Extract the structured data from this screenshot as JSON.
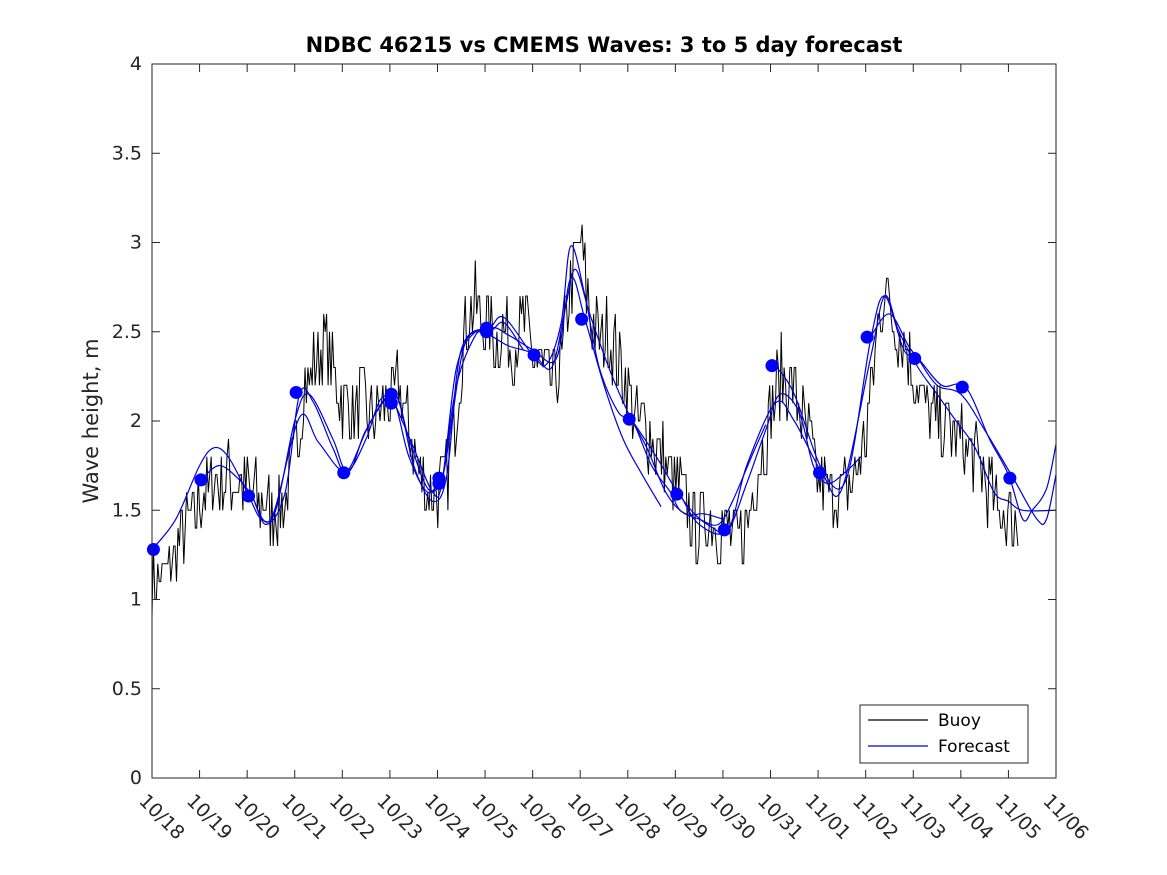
{
  "chart_data": {
    "type": "line",
    "title": "NDBC 46215 vs CMEMS Waves: 3 to 5 day forecast",
    "xlabel": "",
    "ylabel": "Wave height, m",
    "x_tick_labels": [
      "10/18",
      "10/19",
      "10/20",
      "10/21",
      "10/22",
      "10/23",
      "10/24",
      "10/25",
      "10/26",
      "10/27",
      "10/28",
      "10/29",
      "10/30",
      "10/31",
      "11/01",
      "11/02",
      "11/03",
      "11/04",
      "11/05",
      "11/06"
    ],
    "x_unit": "days since 10/18",
    "xlim": [
      0,
      19
    ],
    "ylim": [
      0,
      4
    ],
    "y_ticks": [
      0,
      0.5,
      1,
      1.5,
      2,
      2.5,
      3,
      3.5,
      4
    ],
    "y_tick_labels": [
      "0",
      "0.5",
      "1",
      "1.5",
      "2",
      "2.5",
      "3",
      "3.5",
      "4"
    ],
    "grid": false,
    "legend_position": "bottom-right",
    "colors": {
      "buoy": "#000000",
      "forecast": "#0000dd",
      "markers": "#0000ff",
      "axes": "#262626"
    },
    "buoy": {
      "name": "Buoy",
      "anchors": [
        [
          0.0,
          1.1
        ],
        [
          0.3,
          1.15
        ],
        [
          0.6,
          1.3
        ],
        [
          1.0,
          1.55
        ],
        [
          1.3,
          1.65
        ],
        [
          1.6,
          1.7
        ],
        [
          2.0,
          1.6
        ],
        [
          2.3,
          1.55
        ],
        [
          2.5,
          1.5
        ],
        [
          2.8,
          1.55
        ],
        [
          3.0,
          1.8
        ],
        [
          3.2,
          2.2
        ],
        [
          3.4,
          2.3
        ],
        [
          3.6,
          2.45
        ],
        [
          3.8,
          2.3
        ],
        [
          4.0,
          2.1
        ],
        [
          4.2,
          2.05
        ],
        [
          4.4,
          2.1
        ],
        [
          4.6,
          2.0
        ],
        [
          4.8,
          2.05
        ],
        [
          5.0,
          2.1
        ],
        [
          5.2,
          2.2
        ],
        [
          5.4,
          1.95
        ],
        [
          5.6,
          1.75
        ],
        [
          5.8,
          1.6
        ],
        [
          6.0,
          1.6
        ],
        [
          6.2,
          1.7
        ],
        [
          6.4,
          2.1
        ],
        [
          6.6,
          2.55
        ],
        [
          6.8,
          2.65
        ],
        [
          7.0,
          2.55
        ],
        [
          7.2,
          2.45
        ],
        [
          7.4,
          2.5
        ],
        [
          7.6,
          2.4
        ],
        [
          7.8,
          2.55
        ],
        [
          8.0,
          2.4
        ],
        [
          8.2,
          2.3
        ],
        [
          8.4,
          2.2
        ],
        [
          8.6,
          2.3
        ],
        [
          8.8,
          2.75
        ],
        [
          9.0,
          3.0
        ],
        [
          9.2,
          2.6
        ],
        [
          9.4,
          2.45
        ],
        [
          9.6,
          2.5
        ],
        [
          9.8,
          2.35
        ],
        [
          10.0,
          2.2
        ],
        [
          10.2,
          2.0
        ],
        [
          10.4,
          1.95
        ],
        [
          10.6,
          1.85
        ],
        [
          10.8,
          1.75
        ],
        [
          11.0,
          1.65
        ],
        [
          11.2,
          1.55
        ],
        [
          11.4,
          1.4
        ],
        [
          11.6,
          1.45
        ],
        [
          11.8,
          1.45
        ],
        [
          12.0,
          1.4
        ],
        [
          12.2,
          1.35
        ],
        [
          12.4,
          1.35
        ],
        [
          12.6,
          1.55
        ],
        [
          12.8,
          1.8
        ],
        [
          13.0,
          2.05
        ],
        [
          13.2,
          2.25
        ],
        [
          13.4,
          2.2
        ],
        [
          13.6,
          2.1
        ],
        [
          13.8,
          1.9
        ],
        [
          14.0,
          1.65
        ],
        [
          14.2,
          1.6
        ],
        [
          14.4,
          1.6
        ],
        [
          14.6,
          1.6
        ],
        [
          14.8,
          1.7
        ],
        [
          15.0,
          1.9
        ],
        [
          15.2,
          2.4
        ],
        [
          15.4,
          2.75
        ],
        [
          15.6,
          2.55
        ],
        [
          15.8,
          2.45
        ],
        [
          16.0,
          2.3
        ],
        [
          16.2,
          2.1
        ],
        [
          16.4,
          2.0
        ],
        [
          16.6,
          2.0
        ],
        [
          16.8,
          1.95
        ],
        [
          17.0,
          1.9
        ],
        [
          17.2,
          1.8
        ],
        [
          17.4,
          1.75
        ],
        [
          17.6,
          1.6
        ],
        [
          17.8,
          1.5
        ],
        [
          18.0,
          1.45
        ],
        [
          18.2,
          1.4
        ]
      ]
    },
    "forecast": {
      "name": "Forecast",
      "series": [
        [
          [
            0.0,
            1.28
          ],
          [
            0.5,
            1.45
          ],
          [
            1.0,
            1.75
          ],
          [
            1.3,
            1.85
          ],
          [
            1.6,
            1.8
          ],
          [
            2.0,
            1.6
          ],
          [
            2.3,
            1.45
          ],
          [
            2.6,
            1.5
          ],
          [
            3.0,
            2.0
          ],
          [
            3.3,
            2.15
          ],
          [
            3.8,
            1.9
          ],
          [
            4.1,
            1.72
          ],
          [
            4.5,
            1.9
          ],
          [
            4.8,
            2.12
          ],
          [
            5.1,
            2.1
          ],
          [
            5.4,
            1.8
          ],
          [
            5.8,
            1.6
          ],
          [
            6.1,
            1.7
          ]
        ],
        [
          [
            1.0,
            1.66
          ],
          [
            1.4,
            1.75
          ],
          [
            1.8,
            1.68
          ],
          [
            2.1,
            1.58
          ],
          [
            2.4,
            1.42
          ],
          [
            2.8,
            1.6
          ],
          [
            3.1,
            2.15
          ],
          [
            3.4,
            2.1
          ],
          [
            3.8,
            1.85
          ],
          [
            4.1,
            1.72
          ],
          [
            4.6,
            2.0
          ],
          [
            5.1,
            2.15
          ],
          [
            5.4,
            1.9
          ],
          [
            5.8,
            1.62
          ],
          [
            6.1,
            1.68
          ],
          [
            6.3,
            2.0
          ],
          [
            6.6,
            2.45
          ],
          [
            7.1,
            2.5
          ],
          [
            7.4,
            2.55
          ],
          [
            7.8,
            2.4
          ]
        ],
        [
          [
            2.1,
            1.58
          ],
          [
            2.5,
            1.45
          ],
          [
            3.1,
            2.02
          ],
          [
            3.5,
            1.88
          ],
          [
            4.1,
            1.71
          ],
          [
            4.5,
            1.95
          ],
          [
            5.1,
            2.15
          ],
          [
            5.5,
            1.75
          ],
          [
            5.9,
            1.55
          ],
          [
            6.2,
            1.7
          ],
          [
            6.5,
            2.4
          ],
          [
            7.1,
            2.52
          ],
          [
            7.5,
            2.48
          ],
          [
            8.0,
            2.4
          ],
          [
            8.5,
            2.35
          ],
          [
            8.8,
            2.8
          ],
          [
            9.1,
            2.57
          ],
          [
            9.5,
            2.2
          ],
          [
            9.9,
            1.9
          ],
          [
            10.3,
            1.7
          ],
          [
            10.7,
            1.52
          ]
        ],
        [
          [
            5.1,
            2.1
          ],
          [
            5.5,
            1.85
          ],
          [
            5.9,
            1.6
          ],
          [
            6.1,
            1.66
          ],
          [
            6.4,
            2.3
          ],
          [
            6.8,
            2.5
          ],
          [
            7.1,
            2.48
          ],
          [
            7.5,
            2.42
          ],
          [
            8.0,
            2.38
          ],
          [
            8.4,
            2.3
          ],
          [
            8.7,
            2.65
          ],
          [
            8.9,
            2.85
          ],
          [
            9.2,
            2.6
          ],
          [
            9.6,
            2.3
          ],
          [
            10.0,
            2.05
          ],
          [
            10.4,
            1.85
          ],
          [
            10.8,
            1.6
          ],
          [
            11.2,
            1.48
          ],
          [
            11.6,
            1.48
          ],
          [
            12.0,
            1.45
          ]
        ],
        [
          [
            6.1,
            1.66
          ],
          [
            6.4,
            2.2
          ],
          [
            6.8,
            2.48
          ],
          [
            7.1,
            2.52
          ],
          [
            7.4,
            2.58
          ],
          [
            8.0,
            2.37
          ],
          [
            8.3,
            2.32
          ],
          [
            8.6,
            2.55
          ],
          [
            8.8,
            2.98
          ],
          [
            9.1,
            2.7
          ],
          [
            9.4,
            2.3
          ],
          [
            9.8,
            2.05
          ],
          [
            10.1,
            2.0
          ],
          [
            10.5,
            1.75
          ],
          [
            10.9,
            1.6
          ],
          [
            11.1,
            1.5
          ],
          [
            11.5,
            1.45
          ],
          [
            11.9,
            1.42
          ],
          [
            12.2,
            1.55
          ],
          [
            12.6,
            1.8
          ],
          [
            12.9,
            1.98
          ]
        ],
        [
          [
            10.1,
            2.0
          ],
          [
            10.6,
            1.8
          ],
          [
            11.0,
            1.62
          ],
          [
            11.4,
            1.48
          ],
          [
            11.8,
            1.4
          ],
          [
            12.1,
            1.38
          ],
          [
            12.5,
            1.65
          ],
          [
            12.9,
            1.95
          ],
          [
            13.2,
            2.15
          ],
          [
            13.6,
            2.05
          ],
          [
            13.9,
            1.75
          ],
          [
            14.2,
            1.65
          ],
          [
            14.6,
            1.72
          ],
          [
            14.9,
            1.8
          ]
        ],
        [
          [
            11.1,
            1.59
          ],
          [
            11.5,
            1.42
          ],
          [
            12.1,
            1.39
          ],
          [
            12.5,
            1.75
          ],
          [
            13.1,
            2.1
          ],
          [
            13.5,
            2.0
          ],
          [
            14.1,
            1.7
          ],
          [
            14.5,
            1.62
          ],
          [
            15.1,
            2.35
          ],
          [
            15.4,
            2.7
          ],
          [
            15.7,
            2.5
          ],
          [
            16.1,
            2.3
          ],
          [
            16.5,
            2.15
          ],
          [
            16.9,
            2.0
          ],
          [
            17.3,
            1.85
          ],
          [
            17.7,
            1.6
          ],
          [
            18.0,
            1.55
          ],
          [
            18.3,
            1.5
          ],
          [
            19.0,
            1.5
          ]
        ],
        [
          [
            13.1,
            2.31
          ],
          [
            13.5,
            2.15
          ],
          [
            14.1,
            1.72
          ],
          [
            14.6,
            1.68
          ],
          [
            15.1,
            2.45
          ],
          [
            15.4,
            2.7
          ],
          [
            15.8,
            2.4
          ],
          [
            16.1,
            2.35
          ],
          [
            16.6,
            2.2
          ],
          [
            17.1,
            2.19
          ],
          [
            17.6,
            1.9
          ],
          [
            18.0,
            1.7
          ],
          [
            18.3,
            1.45
          ],
          [
            18.5,
            1.5
          ],
          [
            18.8,
            1.62
          ],
          [
            19.0,
            1.87
          ]
        ],
        [
          [
            15.1,
            2.47
          ],
          [
            15.5,
            2.6
          ],
          [
            15.9,
            2.42
          ],
          [
            16.1,
            2.35
          ],
          [
            16.5,
            2.2
          ],
          [
            17.0,
            2.15
          ],
          [
            17.5,
            1.95
          ],
          [
            18.1,
            1.68
          ],
          [
            18.6,
            1.45
          ],
          [
            18.8,
            1.45
          ],
          [
            19.0,
            1.7
          ]
        ]
      ]
    },
    "forecast_points": [
      [
        0.03,
        1.28
      ],
      [
        1.03,
        1.67
      ],
      [
        2.03,
        1.58
      ],
      [
        3.03,
        2.16
      ],
      [
        4.03,
        1.71
      ],
      [
        5.03,
        2.15
      ],
      [
        5.03,
        2.1
      ],
      [
        6.03,
        1.68
      ],
      [
        6.03,
        1.65
      ],
      [
        7.03,
        2.52
      ],
      [
        7.03,
        2.5
      ],
      [
        8.03,
        2.37
      ],
      [
        9.03,
        2.57
      ],
      [
        10.03,
        2.01
      ],
      [
        11.03,
        1.59
      ],
      [
        12.03,
        1.39
      ],
      [
        13.03,
        2.31
      ],
      [
        14.03,
        1.71
      ],
      [
        15.03,
        2.47
      ],
      [
        16.03,
        2.35
      ],
      [
        17.03,
        2.19
      ],
      [
        18.03,
        1.68
      ]
    ]
  },
  "legend": {
    "buoy_label": "Buoy",
    "forecast_label": "Forecast"
  }
}
